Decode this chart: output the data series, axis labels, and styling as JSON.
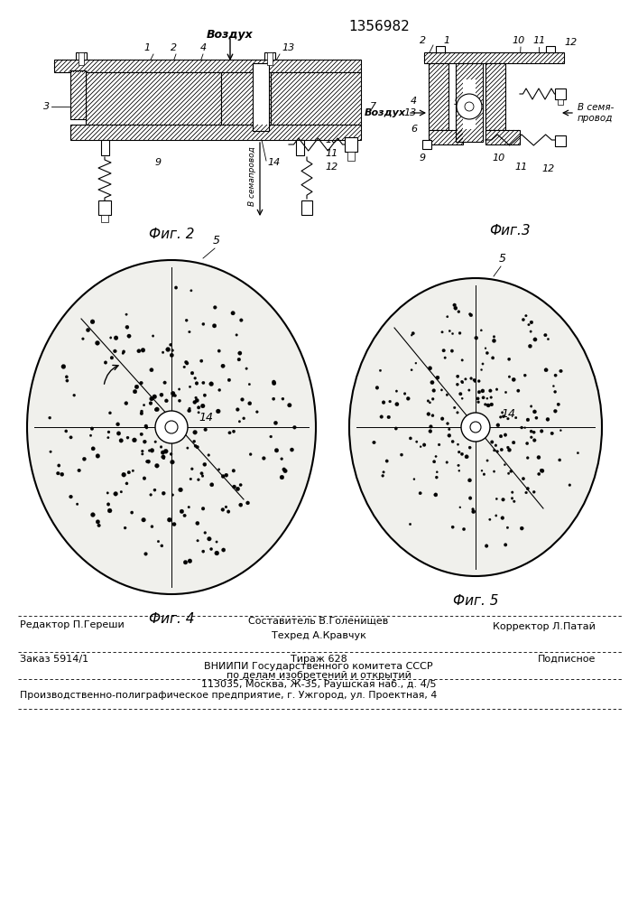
{
  "patent_number": "1356982",
  "fig2_label": "Фиг. 2",
  "fig3_label": "Фиг.3",
  "fig4_label": "Фиг. 4",
  "fig5_label": "Фиг. 5",
  "vozdux": "Воздух",
  "v_semaprovod_fig2": "В семапровод",
  "v_semaprovod_fig3": "В семя-\nпровод",
  "vozdux_fig3": "Воздух",
  "editor_line": "Редактор П.Гереши",
  "sostavitel_line1": "Составитель В.Голенищев",
  "tehred_line": "Техред А.Кравчук",
  "korrektor_line": "Корректор Л.Патай",
  "zakaz_line": "Заказ 5914/1",
  "tiraj_line": "Тираж 628",
  "podpisnoe_line": "Подписное",
  "vniishi_line1": "ВНИИПИ Государственного комитета СССР",
  "vniishi_line2": "по делам изобретений и открытий",
  "vniishi_line3": "113035, Москва, Ж-35, Раушская наб., д. 4/5",
  "proizv_line": "Производственно-полиграфическое предприятие, г. Ужгород, ул. Проектная, 4"
}
